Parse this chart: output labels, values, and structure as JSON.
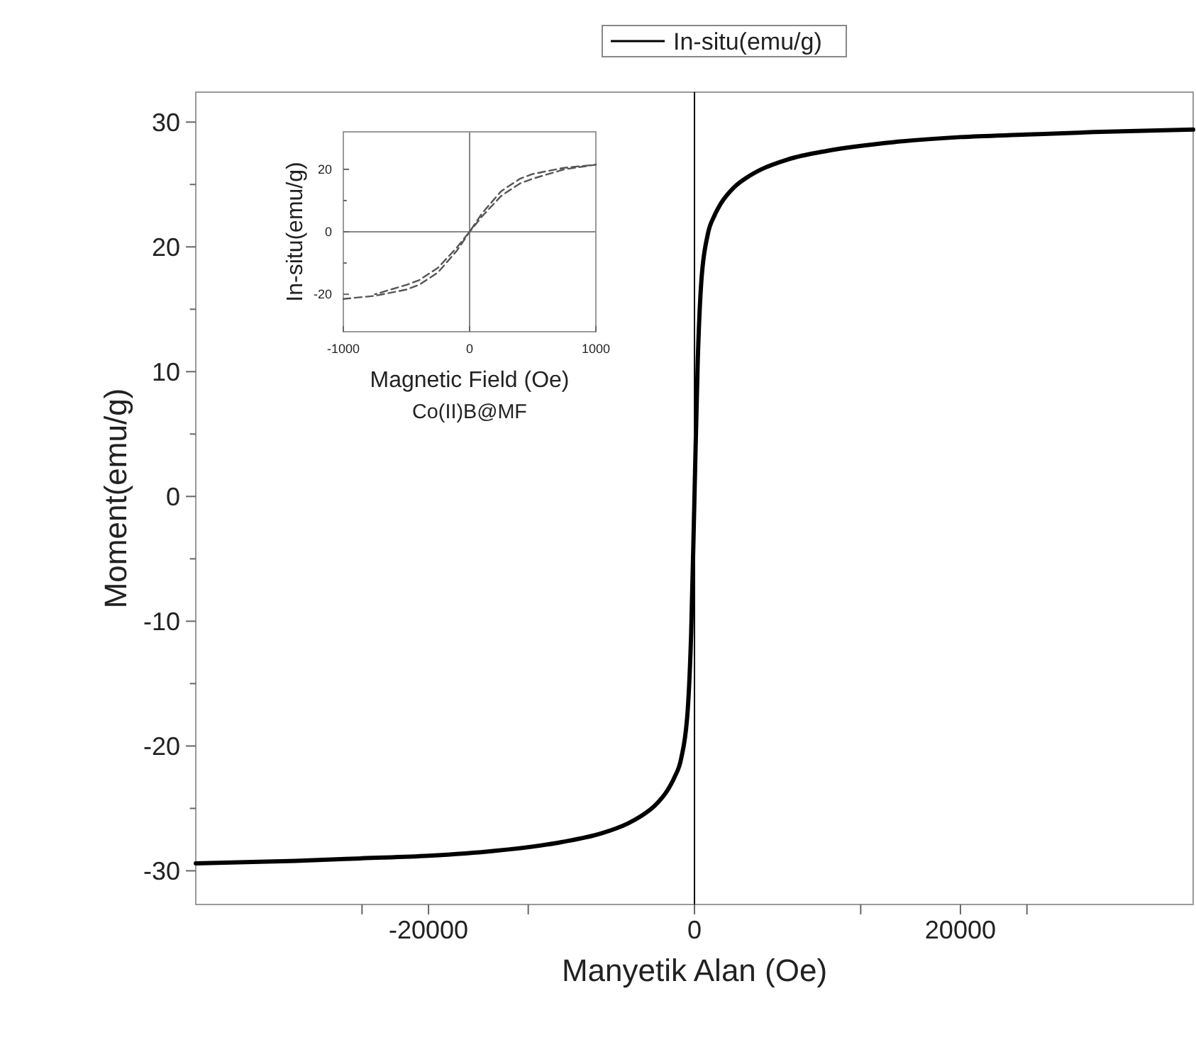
{
  "chart_data": [
    {
      "type": "line",
      "xlabel": "Manyetik Alan (Oe)",
      "ylabel": "Moment(emu/g)",
      "legend": "top",
      "xlim": [
        -37500,
        37500
      ],
      "ylim": [
        -32.7,
        32.4
      ],
      "xticks": [
        {
          "value": -25000,
          "label": null
        },
        -20000,
        {
          "value": -12500,
          "label": null
        },
        0,
        {
          "value": 12500,
          "label": null
        },
        20000,
        {
          "value": 25000,
          "label": null
        }
      ],
      "yticks": [
        -30,
        {
          "value": -25,
          "label": null
        },
        -20,
        {
          "value": -15,
          "label": null
        },
        -10,
        {
          "value": -5,
          "label": null
        },
        0,
        {
          "value": 5,
          "label": null
        },
        10,
        {
          "value": 15,
          "label": null
        },
        20,
        {
          "value": 25,
          "label": null
        },
        30
      ],
      "ref_lines": [
        {
          "axis": "x",
          "value": 0,
          "color": "#000000"
        }
      ],
      "series": [
        {
          "name": "In-situ(emu/g)",
          "color": "#000000",
          "x": [
            -37500,
            -30000,
            -25000,
            -20000,
            -15000,
            -10000,
            -7000,
            -5000,
            -4000,
            -3000,
            -2000,
            -1500,
            -1000,
            -500,
            -250,
            0,
            250,
            500,
            1000,
            1500,
            2000,
            3000,
            4000,
            5000,
            7000,
            10000,
            15000,
            20000,
            25000,
            30000,
            37500
          ],
          "values": [
            -29.4,
            -29.2,
            -29.0,
            -28.8,
            -28.4,
            -27.7,
            -27.0,
            -26.2,
            -25.6,
            -24.8,
            -23.5,
            -22.5,
            -21,
            -17,
            -11,
            0,
            11,
            17,
            21,
            22.5,
            23.5,
            24.8,
            25.6,
            26.2,
            27.0,
            27.7,
            28.4,
            28.8,
            29.0,
            29.2,
            29.4
          ]
        }
      ]
    },
    {
      "type": "line",
      "xlabel": "Magnetic Field (Oe)",
      "ylabel": "In-situ(emu/g)",
      "line_style": "dashed",
      "xlim": [
        -1000,
        1000
      ],
      "ylim": [
        -32,
        32
      ],
      "xticks": [
        -1000,
        0,
        1000
      ],
      "yticks": [
        -20,
        {
          "value": -10,
          "label": null
        },
        0,
        {
          "value": 10,
          "label": null
        },
        20
      ],
      "ref_lines": [
        {
          "axis": "x",
          "value": 0,
          "color": "#888888"
        },
        {
          "axis": "y",
          "value": 0,
          "color": "#888888"
        }
      ],
      "annotations": [
        "Co(II)B@MF"
      ],
      "series": [
        {
          "color": "#555555",
          "x": [
            -1000,
            -750,
            -500,
            -400,
            -250,
            -100,
            0,
            100,
            250,
            400,
            500,
            750,
            1000,
            750,
            500,
            400,
            250,
            100,
            0,
            -100,
            -250,
            -400,
            -500,
            -750
          ],
          "values": [
            -21.5,
            -20.5,
            -18.5,
            -17,
            -13,
            -6,
            0,
            5,
            11.5,
            15.5,
            17,
            20,
            21.5,
            20.5,
            18.5,
            17,
            13,
            6,
            0,
            -5,
            -11.5,
            -15.5,
            -17,
            -20
          ]
        }
      ]
    }
  ]
}
